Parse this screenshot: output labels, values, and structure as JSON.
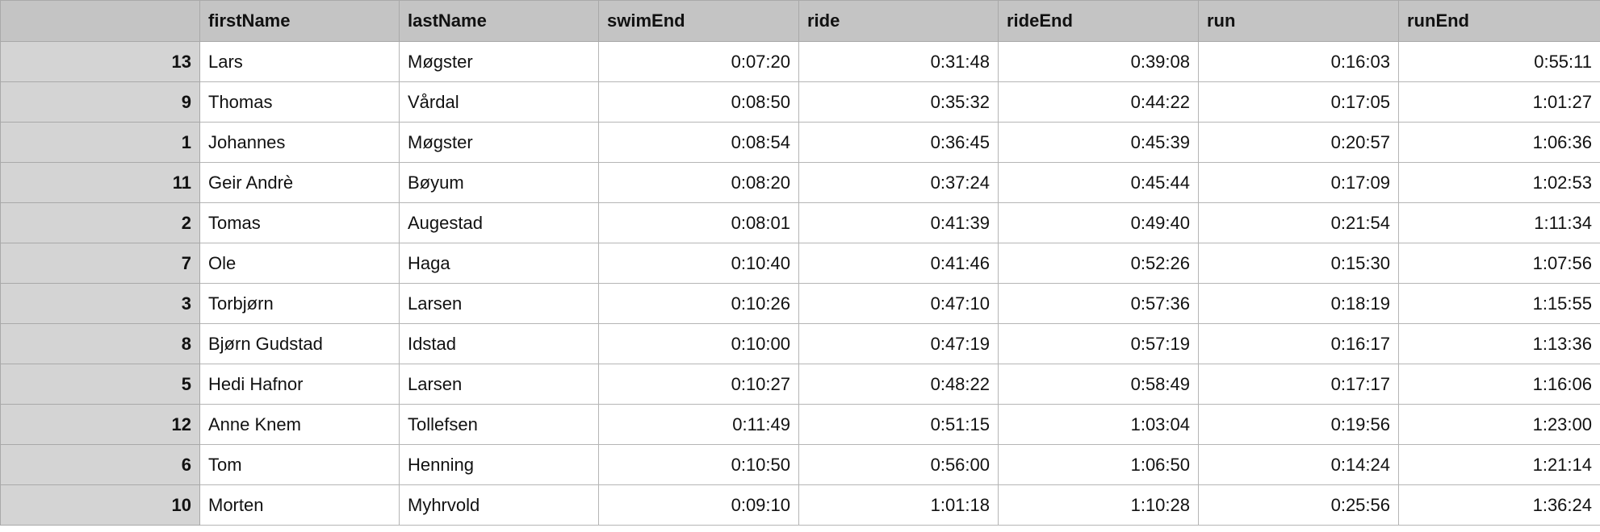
{
  "table": {
    "columns": [
      "",
      "firstName",
      "lastName",
      "swimEnd",
      "ride",
      "rideEnd",
      "run",
      "runEnd"
    ],
    "rows": [
      {
        "id": "13",
        "firstName": "Lars",
        "lastName": "Møgster",
        "swimEnd": "0:07:20",
        "ride": "0:31:48",
        "rideEnd": "0:39:08",
        "run": "0:16:03",
        "runEnd": "0:55:11"
      },
      {
        "id": "9",
        "firstName": "Thomas",
        "lastName": "Vårdal",
        "swimEnd": "0:08:50",
        "ride": "0:35:32",
        "rideEnd": "0:44:22",
        "run": "0:17:05",
        "runEnd": "1:01:27"
      },
      {
        "id": "1",
        "firstName": "Johannes",
        "lastName": "Møgster",
        "swimEnd": "0:08:54",
        "ride": "0:36:45",
        "rideEnd": "0:45:39",
        "run": "0:20:57",
        "runEnd": "1:06:36"
      },
      {
        "id": "11",
        "firstName": "Geir Andrè",
        "lastName": "Bøyum",
        "swimEnd": "0:08:20",
        "ride": "0:37:24",
        "rideEnd": "0:45:44",
        "run": "0:17:09",
        "runEnd": "1:02:53"
      },
      {
        "id": "2",
        "firstName": "Tomas",
        "lastName": "Augestad",
        "swimEnd": "0:08:01",
        "ride": "0:41:39",
        "rideEnd": "0:49:40",
        "run": "0:21:54",
        "runEnd": "1:11:34"
      },
      {
        "id": "7",
        "firstName": "Ole",
        "lastName": "Haga",
        "swimEnd": "0:10:40",
        "ride": "0:41:46",
        "rideEnd": "0:52:26",
        "run": "0:15:30",
        "runEnd": "1:07:56"
      },
      {
        "id": "3",
        "firstName": "Torbjørn",
        "lastName": "Larsen",
        "swimEnd": "0:10:26",
        "ride": "0:47:10",
        "rideEnd": "0:57:36",
        "run": "0:18:19",
        "runEnd": "1:15:55"
      },
      {
        "id": "8",
        "firstName": "Bjørn Gudstad",
        "lastName": "Idstad",
        "swimEnd": "0:10:00",
        "ride": "0:47:19",
        "rideEnd": "0:57:19",
        "run": "0:16:17",
        "runEnd": "1:13:36"
      },
      {
        "id": "5",
        "firstName": "Hedi Hafnor",
        "lastName": "Larsen",
        "swimEnd": "0:10:27",
        "ride": "0:48:22",
        "rideEnd": "0:58:49",
        "run": "0:17:17",
        "runEnd": "1:16:06"
      },
      {
        "id": "12",
        "firstName": "Anne Knem",
        "lastName": "Tollefsen",
        "swimEnd": "0:11:49",
        "ride": "0:51:15",
        "rideEnd": "1:03:04",
        "run": "0:19:56",
        "runEnd": "1:23:00"
      },
      {
        "id": "6",
        "firstName": "Tom",
        "lastName": "Henning",
        "swimEnd": "0:10:50",
        "ride": "0:56:00",
        "rideEnd": "1:06:50",
        "run": "0:14:24",
        "runEnd": "1:21:14"
      },
      {
        "id": "10",
        "firstName": "Morten",
        "lastName": "Myhrvold",
        "swimEnd": "0:09:10",
        "ride": "1:01:18",
        "rideEnd": "1:10:28",
        "run": "0:25:56",
        "runEnd": "1:36:24"
      }
    ]
  }
}
